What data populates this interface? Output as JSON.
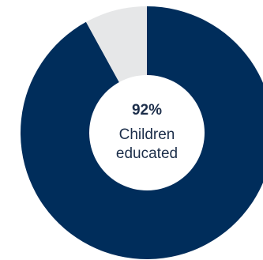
{
  "chart_data": {
    "type": "pie",
    "style": "donut",
    "categories": [
      "Children educated",
      ""
    ],
    "values": [
      92,
      8
    ],
    "colors": [
      "#002d5b",
      "#e6e7e8"
    ],
    "center_value": "92%",
    "center_label_line1": "Children",
    "center_label_line2": "educated"
  }
}
